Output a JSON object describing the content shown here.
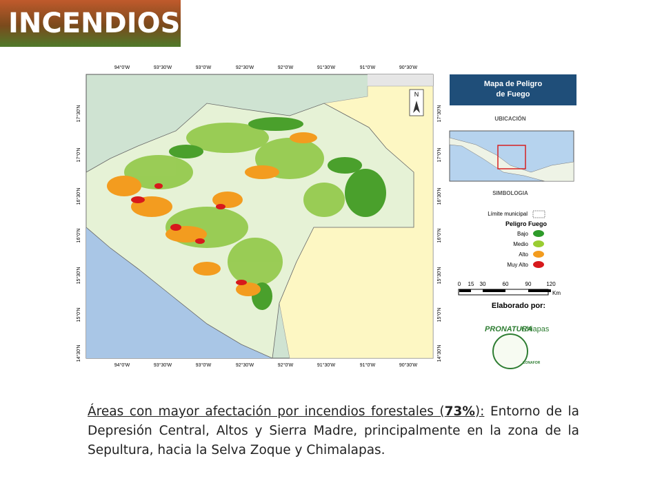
{
  "title": "INCENDIOS",
  "map": {
    "longitudes": [
      "94°0'W",
      "93°30'W",
      "93°0'W",
      "92°30'W",
      "92°0'W",
      "91°30'W",
      "91°0'W",
      "90°30'W"
    ],
    "latitudes": [
      "17°30'N",
      "17°0'N",
      "16°30'N",
      "16°0'N",
      "15°30'N",
      "15°0'N",
      "14°30'N"
    ],
    "north": "N"
  },
  "legend": {
    "header": "Mapa de Peligro de Fuego",
    "location": "UBICACIÓN",
    "symbology": "SIMBOLOGIA",
    "boundary": "Límite municipal",
    "hazard_title": "Peligro Fuego",
    "classes": [
      "Bajo",
      "Medio",
      "Alto",
      "Muy Alto"
    ],
    "scale": [
      "0",
      "15",
      "30",
      "60",
      "90",
      "120"
    ],
    "scale_unit": "Km",
    "credits": "Elaborado por:",
    "logo1": "PRONATURA",
    "logo1_suffix": "Chiapas",
    "logo2": "CONAFOR"
  },
  "caption": {
    "lead_start": "Áreas con mayor afectación por incendios forestales (",
    "lead_bold": "73%",
    "lead_end": "):",
    "text": "Entorno de la Depresión Central, Altos y Sierra Madre, principalmente en la zona de la Sepultura, hacia la Selva Zoque y Chimalapas."
  }
}
